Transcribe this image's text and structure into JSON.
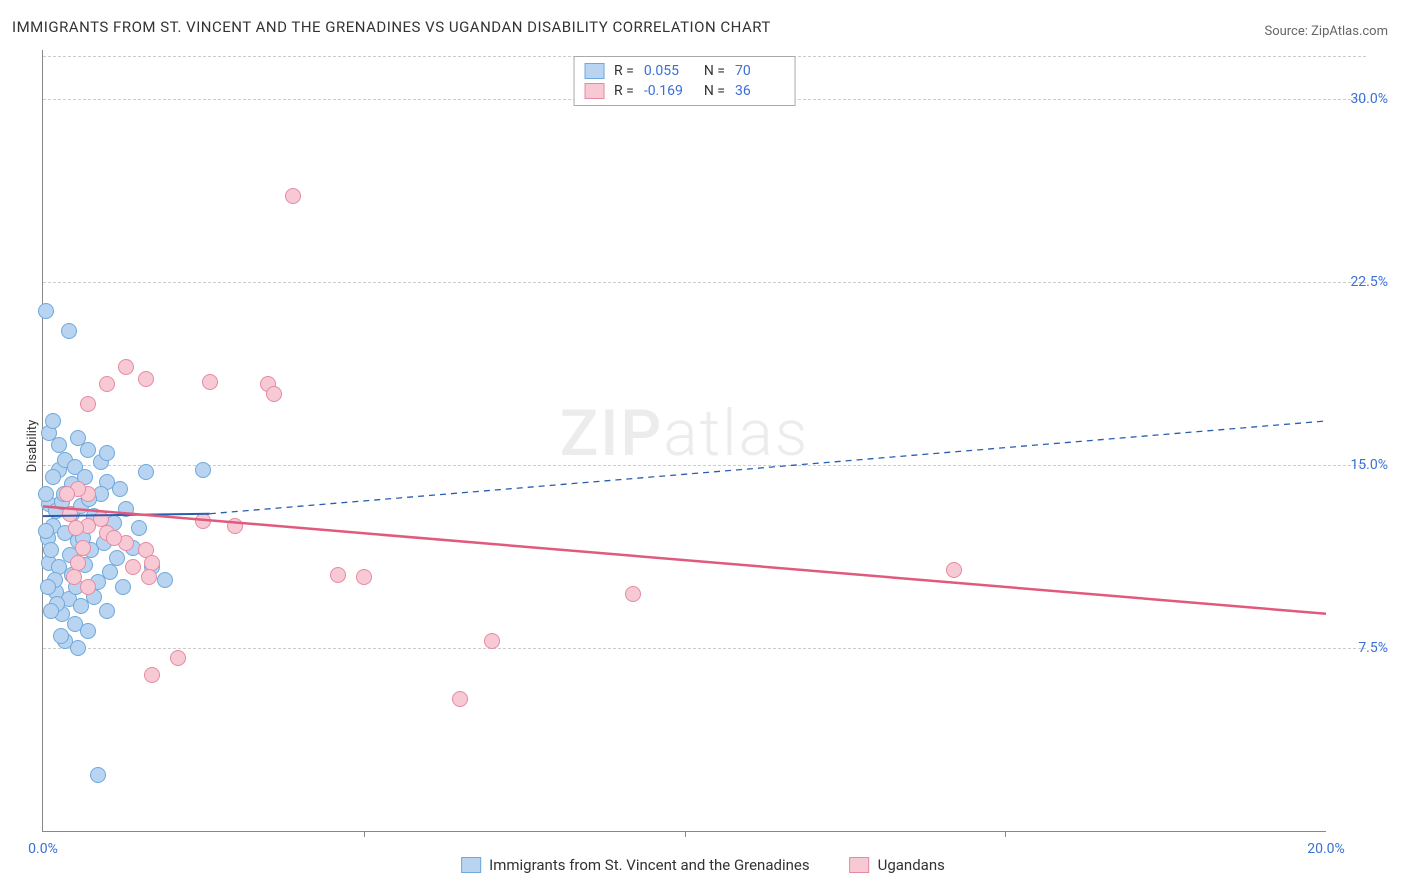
{
  "title": "IMMIGRANTS FROM ST. VINCENT AND THE GRENADINES VS UGANDAN DISABILITY CORRELATION CHART",
  "source": "Source: ZipAtlas.com",
  "ylabel": "Disability",
  "watermark_a": "ZIP",
  "watermark_b": "atlas",
  "chart": {
    "type": "scatter",
    "xlim": [
      0,
      20
    ],
    "ylim": [
      0,
      32
    ],
    "x_ticks": [
      0,
      5,
      10,
      15,
      20
    ],
    "x_tick_labels": [
      "0.0%",
      "",
      "",
      "",
      "20.0%"
    ],
    "y_ticks": [
      7.5,
      15.0,
      22.5,
      30.0
    ],
    "y_tick_labels": [
      "7.5%",
      "15.0%",
      "22.5%",
      "30.0%"
    ],
    "grid_color": "#cccccc",
    "axis_color": "#888888",
    "background": "#ffffff",
    "text_color": "#333333",
    "tick_color": "#3b6fd6"
  },
  "series": [
    {
      "name": "Immigrants from St. Vincent and the Grenadines",
      "label": "Immigrants from St. Vincent and the Grenadines",
      "fill": "#b8d4f0",
      "stroke": "#6fa8dc",
      "r_label": "R =",
      "r": "0.055",
      "n_label": "N =",
      "n": "70",
      "trend": {
        "x1": 0,
        "y1": 12.9,
        "x2": 2.6,
        "y2": 13.0,
        "solid_until_x": 2.6,
        "dash_to_x": 20,
        "dash_to_y": 16.8,
        "color": "#2a5db0",
        "width": 2
      },
      "points": [
        [
          0.05,
          21.3
        ],
        [
          0.4,
          20.5
        ],
        [
          0.1,
          16.3
        ],
        [
          0.25,
          14.8
        ],
        [
          0.35,
          15.2
        ],
        [
          0.5,
          14.9
        ],
        [
          0.7,
          15.6
        ],
        [
          0.9,
          15.1
        ],
        [
          1.0,
          14.3
        ],
        [
          1.6,
          14.7
        ],
        [
          2.5,
          14.8
        ],
        [
          0.1,
          13.4
        ],
        [
          0.2,
          13.1
        ],
        [
          0.3,
          13.5
        ],
        [
          0.45,
          13.0
        ],
        [
          0.6,
          13.3
        ],
        [
          0.8,
          12.9
        ],
        [
          1.1,
          12.6
        ],
        [
          1.3,
          13.2
        ],
        [
          1.5,
          12.4
        ],
        [
          0.15,
          12.5
        ],
        [
          0.35,
          12.2
        ],
        [
          0.55,
          11.9
        ],
        [
          0.75,
          11.5
        ],
        [
          0.95,
          11.8
        ],
        [
          1.15,
          11.2
        ],
        [
          1.4,
          11.6
        ],
        [
          0.1,
          11.0
        ],
        [
          0.25,
          10.8
        ],
        [
          0.45,
          10.5
        ],
        [
          0.65,
          10.9
        ],
        [
          0.85,
          10.2
        ],
        [
          1.05,
          10.6
        ],
        [
          1.25,
          10.0
        ],
        [
          0.2,
          9.8
        ],
        [
          0.4,
          9.5
        ],
        [
          0.6,
          9.2
        ],
        [
          0.8,
          9.6
        ],
        [
          1.0,
          9.0
        ],
        [
          1.9,
          10.3
        ],
        [
          1.7,
          10.8
        ],
        [
          0.3,
          8.9
        ],
        [
          0.5,
          8.5
        ],
        [
          0.7,
          8.2
        ],
        [
          0.35,
          7.8
        ],
        [
          0.55,
          7.5
        ],
        [
          0.45,
          14.2
        ],
        [
          0.15,
          14.5
        ],
        [
          1.2,
          14.0
        ],
        [
          0.25,
          15.8
        ],
        [
          0.05,
          13.8
        ],
        [
          0.08,
          12.0
        ],
        [
          0.12,
          11.5
        ],
        [
          0.18,
          10.3
        ],
        [
          0.22,
          9.3
        ],
        [
          0.28,
          8.0
        ],
        [
          0.85,
          2.3
        ],
        [
          0.9,
          13.8
        ],
        [
          1.0,
          15.5
        ],
        [
          0.55,
          16.1
        ],
        [
          0.15,
          16.8
        ],
        [
          0.05,
          12.3
        ],
        [
          0.08,
          10.0
        ],
        [
          0.12,
          9.0
        ],
        [
          0.65,
          14.5
        ],
        [
          0.32,
          13.8
        ],
        [
          0.42,
          11.3
        ],
        [
          0.52,
          10.0
        ],
        [
          0.62,
          12.0
        ],
        [
          0.72,
          13.6
        ]
      ]
    },
    {
      "name": "Ugandans",
      "label": "Ugandans",
      "fill": "#f7c9d4",
      "stroke": "#e68aa2",
      "r_label": "R =",
      "r": "-0.169",
      "n_label": "N =",
      "n": "36",
      "trend": {
        "x1": 0,
        "y1": 13.3,
        "x2": 20,
        "y2": 8.9,
        "color": "#e05a7d",
        "width": 2.5
      },
      "points": [
        [
          3.9,
          26.0
        ],
        [
          1.3,
          19.0
        ],
        [
          1.0,
          18.3
        ],
        [
          1.6,
          18.5
        ],
        [
          2.6,
          18.4
        ],
        [
          3.5,
          18.3
        ],
        [
          3.6,
          17.9
        ],
        [
          0.7,
          17.5
        ],
        [
          0.7,
          13.8
        ],
        [
          0.7,
          12.5
        ],
        [
          1.0,
          12.2
        ],
        [
          1.3,
          11.8
        ],
        [
          1.6,
          11.5
        ],
        [
          1.7,
          11.0
        ],
        [
          0.55,
          14.0
        ],
        [
          0.9,
          12.8
        ],
        [
          1.1,
          12.0
        ],
        [
          1.4,
          10.8
        ],
        [
          1.65,
          10.4
        ],
        [
          2.5,
          12.7
        ],
        [
          3.0,
          12.5
        ],
        [
          4.6,
          10.5
        ],
        [
          5.0,
          10.4
        ],
        [
          14.2,
          10.7
        ],
        [
          9.2,
          9.7
        ],
        [
          7.0,
          7.8
        ],
        [
          6.5,
          5.4
        ],
        [
          2.1,
          7.1
        ],
        [
          1.7,
          6.4
        ],
        [
          0.38,
          13.8
        ],
        [
          0.42,
          13.0
        ],
        [
          0.52,
          12.4
        ],
        [
          0.62,
          11.6
        ],
        [
          0.55,
          11.0
        ],
        [
          0.48,
          10.4
        ],
        [
          0.7,
          10.0
        ]
      ]
    }
  ]
}
